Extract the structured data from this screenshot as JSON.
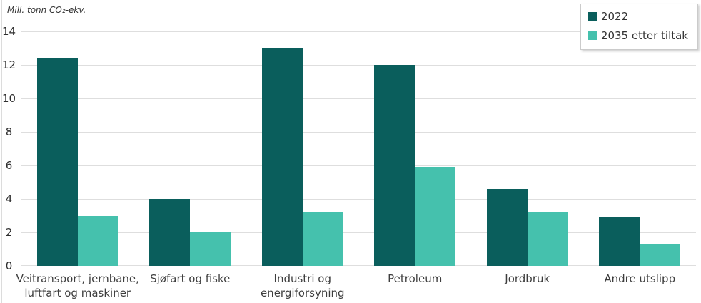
{
  "legend": {
    "items": [
      {
        "label": "2022",
        "color": "#0a5e5c"
      },
      {
        "label": "2035 etter tiltak",
        "color": "#45c1ad"
      }
    ]
  },
  "chart_data": {
    "type": "bar",
    "title": "",
    "ylabel": "Mill. tonn CO₂-ekv.",
    "xlabel": "",
    "categories": [
      "Veitransport, jernbane, luftfart og maskiner",
      "Sjøfart og fiske",
      "Industri og energiforsyning",
      "Petroleum",
      "Jordbruk",
      "Andre utslipp"
    ],
    "series": [
      {
        "name": "2022",
        "color": "#0a5e5c",
        "values": [
          12.4,
          4.0,
          13.0,
          12.0,
          4.6,
          2.9
        ]
      },
      {
        "name": "2035 etter tiltak",
        "color": "#45c1ad",
        "values": [
          3.0,
          2.0,
          3.2,
          5.9,
          3.2,
          1.3
        ]
      }
    ],
    "ylim": [
      0,
      14
    ],
    "yticks": [
      0,
      2,
      4,
      6,
      8,
      10,
      12,
      14
    ],
    "grid": true,
    "legend_position": "top-right",
    "gridline_color": "#dedede"
  }
}
